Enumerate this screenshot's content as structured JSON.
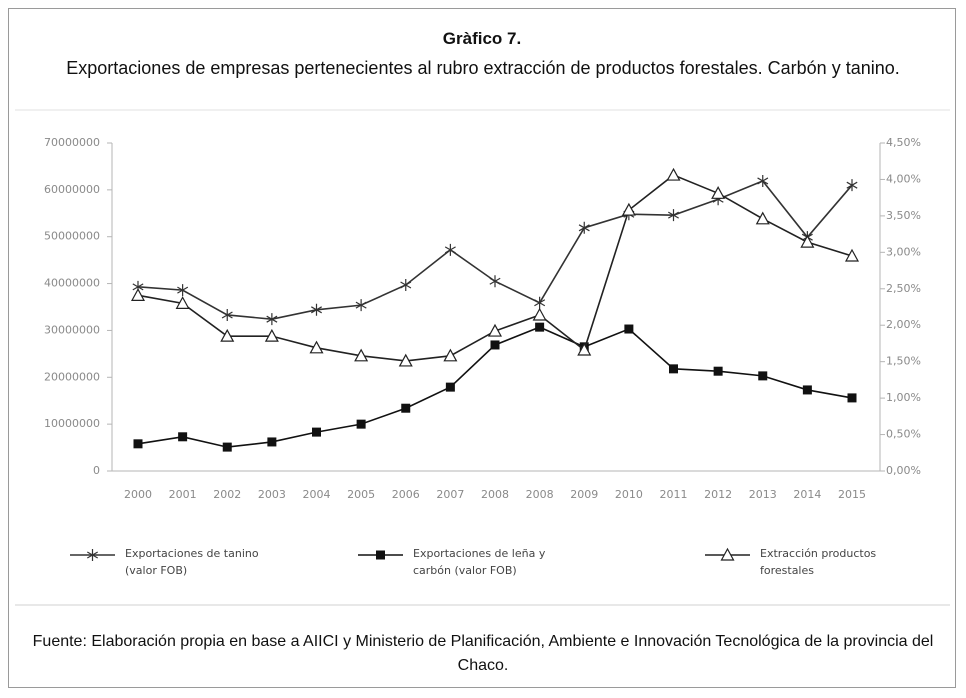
{
  "chart_data": {
    "type": "line",
    "title": "Gràfico 7.",
    "subtitle": "Exportaciones de empresas pertenecientes al rubro extracción de productos forestales. Carbón y tanino.",
    "source": "Fuente: Elaboración propia en base a AIICI y Ministerio de Planificación, Ambiente e Innovación Tecnológica de la provincia del Chaco.",
    "categories": [
      "2000",
      "2001",
      "2002",
      "2003",
      "2004",
      "2005",
      "2006",
      "2007",
      "2008",
      "2008",
      "2009",
      "2010",
      "2011",
      "2012",
      "2013",
      "2014",
      "2015"
    ],
    "ylim": [
      0,
      70000000
    ],
    "yticks": [
      0,
      10000000,
      20000000,
      30000000,
      40000000,
      50000000,
      60000000,
      70000000
    ],
    "y2lim": [
      0,
      4.5
    ],
    "y2ticks": [
      {
        "value": 0,
        "label": "0,00%"
      },
      {
        "value": 0.5,
        "label": "0,50%"
      },
      {
        "value": 1,
        "label": "1,00%"
      },
      {
        "value": 1.5,
        "label": "1,50%"
      },
      {
        "value": 2,
        "label": "2,00%"
      },
      {
        "value": 2.5,
        "label": "2,50%"
      },
      {
        "value": 3,
        "label": "3,00%"
      },
      {
        "value": 3.5,
        "label": "3,50%"
      },
      {
        "value": 4,
        "label": "4,00%"
      },
      {
        "value": 4.5,
        "label": "4,50%"
      }
    ],
    "grid": false,
    "series": [
      {
        "name": "Exportaciones de tanino (valor FOB)",
        "color": "#333333",
        "marker": "star",
        "values": [
          39300000,
          38600000,
          33300000,
          32400000,
          34400000,
          35400000,
          39700000,
          47200000,
          40500000,
          35900000,
          51900000,
          54800000,
          54600000,
          58000000,
          61900000,
          49900000,
          61000000
        ]
      },
      {
        "name": "Exportaciones de leña y carbón (valor FOB)",
        "color": "#111111",
        "marker": "square",
        "values": [
          5800000,
          7300000,
          5100000,
          6200000,
          8300000,
          10000000,
          13400000,
          17900000,
          26900000,
          30700000,
          26500000,
          30300000,
          21800000,
          21300000,
          20300000,
          17300000,
          15600000
        ]
      },
      {
        "name": "Extracción productos forestales",
        "color": "#222222",
        "marker": "triangle",
        "axis": "y2",
        "values": [
          2.41,
          2.3,
          1.85,
          1.85,
          1.69,
          1.58,
          1.51,
          1.58,
          1.92,
          2.14,
          1.66,
          3.58,
          4.06,
          3.81,
          3.46,
          3.14,
          2.95
        ]
      }
    ]
  }
}
